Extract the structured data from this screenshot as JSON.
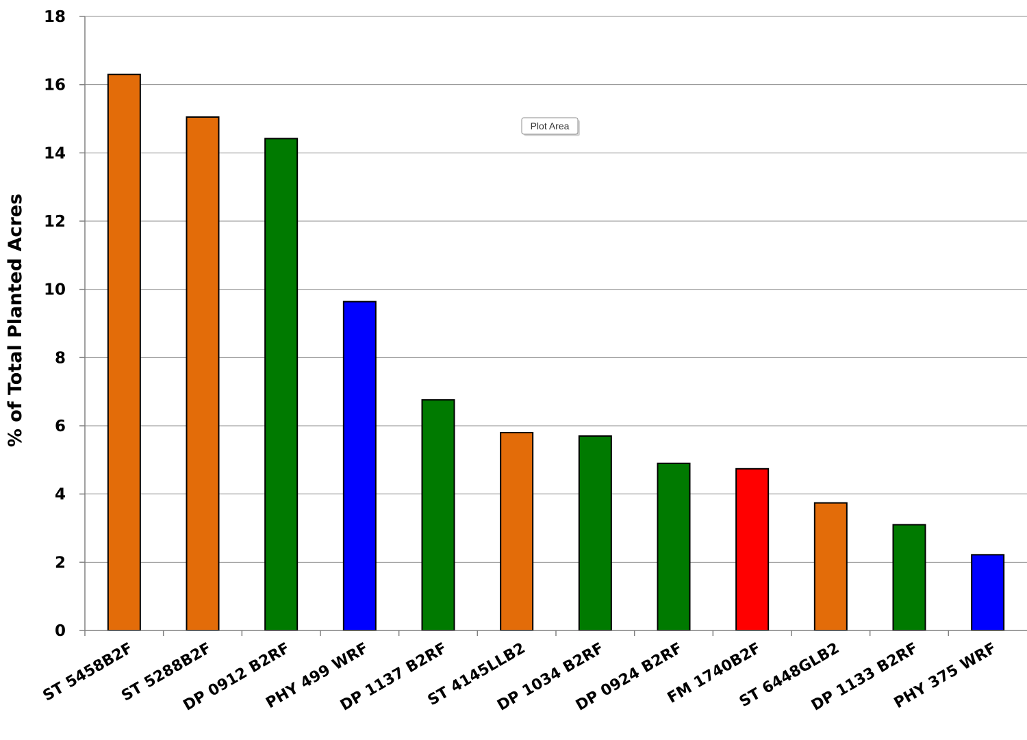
{
  "chart_data": {
    "type": "bar",
    "categories": [
      "ST 5458B2F",
      "ST 5288B2F",
      "DP 0912 B2RF",
      "PHY 499 WRF",
      "DP 1137 B2RF",
      "ST 4145LLB2",
      "DP 1034 B2RF",
      "DP 0924 B2RF",
      "FM 1740B2F",
      "ST 6448GLB2",
      "DP 1133 B2RF",
      "PHY 375 WRF"
    ],
    "values": [
      16.3,
      15.05,
      14.42,
      9.64,
      6.76,
      5.8,
      5.7,
      4.9,
      4.74,
      3.74,
      3.1,
      2.22
    ],
    "colors": [
      "#E36C09",
      "#E36C09",
      "#007A00",
      "#0000FF",
      "#007A00",
      "#E36C09",
      "#007A00",
      "#007A00",
      "#FF0000",
      "#E36C09",
      "#007A00",
      "#0000FF"
    ],
    "ylabel": "% of Total Planted Acres",
    "xlabel": "",
    "ylim": [
      0,
      18
    ],
    "yticks": [
      0,
      2,
      4,
      6,
      8,
      10,
      12,
      14,
      16,
      18
    ],
    "grid": true
  },
  "tooltip": {
    "text": "Plot Area"
  }
}
